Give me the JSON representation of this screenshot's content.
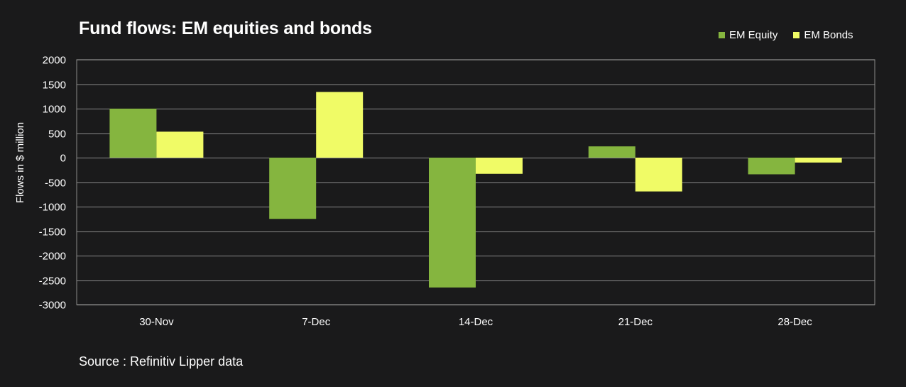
{
  "chart_data": {
    "type": "bar",
    "title": "Fund flows: EM equities and bonds",
    "ylabel": "Flows in $ million",
    "xlabel": "",
    "categories": [
      "30-Nov",
      "7-Dec",
      "14-Dec",
      "21-Dec",
      "28-Dec"
    ],
    "series": [
      {
        "name": "EM Equity",
        "color": "#85b53f",
        "values": [
          1000,
          -1250,
          -2650,
          230,
          -340
        ]
      },
      {
        "name": "EM Bonds",
        "color": "#f0fb66",
        "values": [
          530,
          1340,
          -330,
          -690,
          -100
        ]
      }
    ],
    "ylim": [
      -3000,
      2000
    ],
    "yticks": [
      2000,
      1500,
      1000,
      500,
      0,
      -500,
      -1000,
      -1500,
      -2000,
      -2500,
      -3000
    ],
    "grid": true,
    "legend": "top-right"
  },
  "source": "Source : Refinitiv Lipper data",
  "colors": {
    "background": "#1a1a1b",
    "gridline": "#8a8a8a",
    "text": "#ffffff"
  }
}
